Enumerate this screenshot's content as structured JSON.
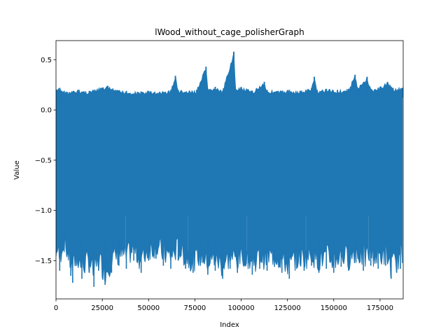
{
  "chart_data": {
    "type": "line",
    "title": "lWood_without_cage_polisherGraph",
    "xlabel": "Index",
    "ylabel": "Value",
    "xlim": [
      0,
      187500
    ],
    "ylim": [
      -1.88,
      0.69
    ],
    "xticks": [
      0,
      25000,
      50000,
      75000,
      100000,
      125000,
      150000,
      175000
    ],
    "xtick_labels": [
      "0",
      "25000",
      "50000",
      "75000",
      "100000",
      "125000",
      "150000",
      "175000"
    ],
    "yticks": [
      0.5,
      0.0,
      -0.5,
      -1.0,
      -1.5
    ],
    "ytick_labels": [
      "0.5",
      "0.0",
      "−0.5",
      "−1.0",
      "−1.5"
    ],
    "grid": false,
    "series": [
      {
        "color": "#1f77b4",
        "description": "dense oscillating signal; envelope upper ~0.2, lower ~-1.4 to -1.75",
        "upper_envelope": [
          [
            0,
            0.2
          ],
          [
            2000,
            0.22
          ],
          [
            6000,
            0.18
          ],
          [
            12000,
            0.2
          ],
          [
            18000,
            0.19
          ],
          [
            24000,
            0.22
          ],
          [
            28000,
            0.24
          ],
          [
            32000,
            0.2
          ],
          [
            38000,
            0.19
          ],
          [
            44000,
            0.18
          ],
          [
            50000,
            0.19
          ],
          [
            56000,
            0.18
          ],
          [
            62000,
            0.2
          ],
          [
            64500,
            0.34
          ],
          [
            66000,
            0.2
          ],
          [
            72000,
            0.19
          ],
          [
            76000,
            0.2
          ],
          [
            81000,
            0.43
          ],
          [
            82000,
            0.2
          ],
          [
            86000,
            0.23
          ],
          [
            90000,
            0.19
          ],
          [
            96000,
            0.58
          ],
          [
            97000,
            0.2
          ],
          [
            100000,
            0.23
          ],
          [
            106000,
            0.19
          ],
          [
            112500,
            0.28
          ],
          [
            114000,
            0.2
          ],
          [
            120000,
            0.19
          ],
          [
            126000,
            0.2
          ],
          [
            132000,
            0.19
          ],
          [
            138000,
            0.22
          ],
          [
            139500,
            0.33
          ],
          [
            141000,
            0.2
          ],
          [
            146000,
            0.21
          ],
          [
            152000,
            0.2
          ],
          [
            158000,
            0.21
          ],
          [
            161500,
            0.35
          ],
          [
            163000,
            0.22
          ],
          [
            168000,
            0.33
          ],
          [
            170000,
            0.21
          ],
          [
            174000,
            0.22
          ],
          [
            179000,
            0.28
          ],
          [
            182000,
            0.22
          ],
          [
            187000,
            0.22
          ]
        ],
        "lower_envelope": [
          [
            0,
            -1.45
          ],
          [
            2000,
            -1.6
          ],
          [
            4000,
            -1.4
          ],
          [
            8000,
            -1.65
          ],
          [
            9000,
            -1.72
          ],
          [
            11000,
            -1.55
          ],
          [
            14000,
            -1.68
          ],
          [
            18000,
            -1.62
          ],
          [
            20500,
            -1.76
          ],
          [
            23000,
            -1.6
          ],
          [
            26500,
            -1.74
          ],
          [
            30000,
            -1.62
          ],
          [
            34000,
            -1.55
          ],
          [
            38000,
            -1.58
          ],
          [
            42000,
            -1.5
          ],
          [
            46000,
            -1.62
          ],
          [
            50000,
            -1.5
          ],
          [
            54000,
            -1.48
          ],
          [
            58000,
            -1.55
          ],
          [
            62000,
            -1.58
          ],
          [
            66000,
            -1.5
          ],
          [
            70000,
            -1.58
          ],
          [
            74000,
            -1.62
          ],
          [
            78000,
            -1.55
          ],
          [
            82000,
            -1.64
          ],
          [
            86000,
            -1.6
          ],
          [
            90000,
            -1.68
          ],
          [
            94000,
            -1.58
          ],
          [
            98000,
            -1.62
          ],
          [
            102000,
            -1.55
          ],
          [
            106000,
            -1.64
          ],
          [
            110000,
            -1.58
          ],
          [
            114000,
            -1.6
          ],
          [
            118000,
            -1.56
          ],
          [
            122000,
            -1.62
          ],
          [
            126000,
            -1.68
          ],
          [
            130000,
            -1.58
          ],
          [
            134000,
            -1.6
          ],
          [
            138000,
            -1.55
          ],
          [
            142000,
            -1.62
          ],
          [
            146000,
            -1.58
          ],
          [
            150000,
            -1.62
          ],
          [
            154000,
            -1.56
          ],
          [
            158000,
            -1.6
          ],
          [
            162000,
            -1.52
          ],
          [
            166000,
            -1.6
          ],
          [
            170000,
            -1.55
          ],
          [
            174000,
            -1.58
          ],
          [
            178000,
            -1.55
          ],
          [
            181000,
            -1.68
          ],
          [
            184000,
            -1.62
          ],
          [
            186000,
            -1.58
          ]
        ]
      }
    ]
  }
}
